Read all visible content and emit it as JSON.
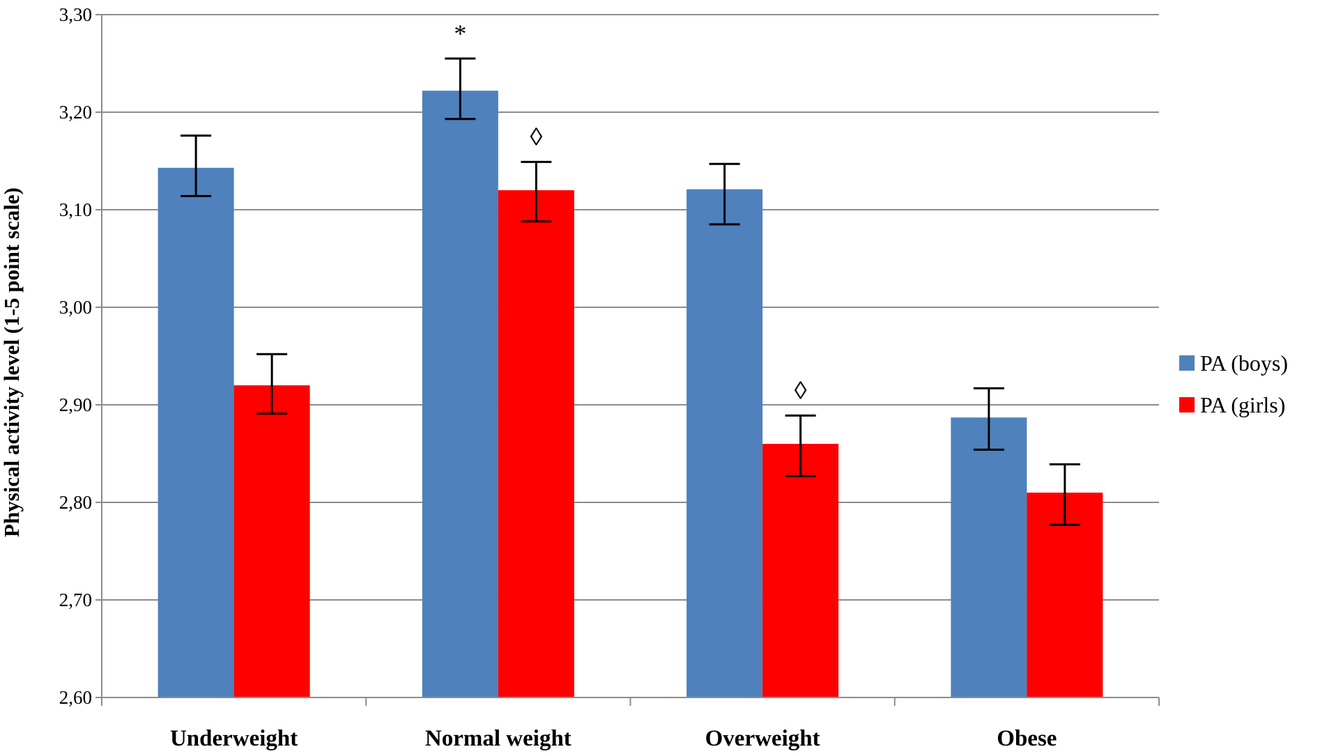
{
  "chart_data": {
    "type": "bar",
    "title": "",
    "xlabel": "",
    "ylabel": "Physical activity level (1-5 point scale)",
    "ylim": [
      2.6,
      3.3
    ],
    "yticks": [
      "2,60",
      "2,70",
      "2,80",
      "2,90",
      "3,00",
      "3,10",
      "3,20",
      "3,30"
    ],
    "ytick_values": [
      2.6,
      2.7,
      2.8,
      2.9,
      3.0,
      3.1,
      3.2,
      3.3
    ],
    "grid": true,
    "legend_position": "right",
    "categories": [
      "Underweight",
      "Normal weight",
      "Overweight",
      "Obese"
    ],
    "series": [
      {
        "name": "PA (boys)",
        "color": "#4F81BD",
        "values": [
          3.143,
          3.222,
          3.121,
          2.887
        ],
        "err_low": [
          3.114,
          3.193,
          3.085,
          2.854
        ],
        "err_high": [
          3.176,
          3.255,
          3.147,
          2.917
        ],
        "annotations": [
          "",
          "*",
          "",
          ""
        ]
      },
      {
        "name": "PA (girls)",
        "color": "#FF0000",
        "values": [
          2.92,
          3.12,
          2.86,
          2.81
        ],
        "err_low": [
          2.891,
          3.088,
          2.827,
          2.777
        ],
        "err_high": [
          2.952,
          3.149,
          2.889,
          2.839
        ],
        "annotations": [
          "",
          "◊",
          "◊",
          ""
        ]
      }
    ]
  }
}
